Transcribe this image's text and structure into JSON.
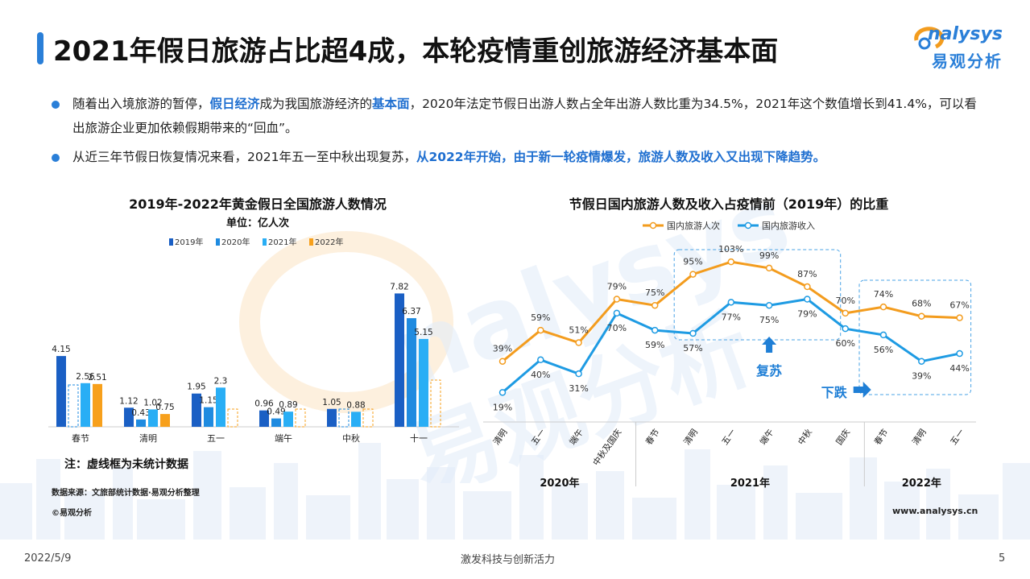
{
  "page": {
    "title": "2021年假日旅游占比超4成，本轮疫情重创旅游经济基本面",
    "logo_text": "nalysys",
    "logo_cn": "易观分析"
  },
  "bullets": [
    {
      "p1": "随着出入境旅游的暂停，",
      "h1": "假日经济",
      "p2": "成为我国旅游经济的",
      "h2": "基本面",
      "p3": "，2020年法定节假日出游人数占全年出游人数比重为34.5%，2021年这个数值增长到41.4%，可以看出旅游企业更加依赖假期带来的“回血”。"
    },
    {
      "p1": "从近三年节假日恢复情况来看，2021年五一至中秋出现复苏，",
      "h1": "从2022年开始，由于新一轮疫情爆发，旅游人数及收入又出现下降趋势。"
    }
  ],
  "chart_data": [
    {
      "type": "bar",
      "title": "2019年-2022年黄金假日全国旅游人数情况",
      "subtitle": "单位：亿人次",
      "categories": [
        "春节",
        "清明",
        "五一",
        "端午",
        "中秋",
        "十一"
      ],
      "series": [
        {
          "name": "2019年",
          "color": "#1a5fc4",
          "values": [
            4.15,
            1.12,
            1.95,
            0.96,
            1.05,
            7.82
          ]
        },
        {
          "name": "2020年",
          "color": "#1f8be0",
          "values": [
            null,
            0.43,
            1.15,
            0.49,
            null,
            6.37
          ],
          "dashed": [
            true,
            false,
            false,
            false,
            true,
            false
          ]
        },
        {
          "name": "2021年",
          "color": "#29aef5",
          "values": [
            2.56,
            1.02,
            2.3,
            0.89,
            0.88,
            5.15
          ]
        },
        {
          "name": "2022年",
          "color": "#f7a01c",
          "values": [
            2.51,
            0.75,
            null,
            null,
            null,
            null
          ],
          "dashed": [
            false,
            false,
            true,
            true,
            true,
            true
          ]
        }
      ],
      "ylim": [
        0,
        8.5
      ],
      "note": "注：虚线框为未统计数据",
      "source": "数据来源：文旅部统计数据·易观分析整理"
    },
    {
      "type": "line",
      "title": "节假日国内旅游人数及收入占疫情前（2019年）的比重",
      "categories": [
        "清明",
        "五一",
        "端午",
        "中秋及国庆",
        "春节",
        "清明",
        "五一",
        "端午",
        "中秋",
        "国庆",
        "春节",
        "清明",
        "五一"
      ],
      "groups": [
        {
          "label": "2020年",
          "from": 0,
          "to": 3
        },
        {
          "label": "2021年",
          "from": 4,
          "to": 9
        },
        {
          "label": "2022年",
          "from": 10,
          "to": 12
        }
      ],
      "series": [
        {
          "name": "国内旅游人次",
          "color": "#f39c1e",
          "values": [
            39,
            59,
            51,
            79,
            75,
            95,
            103,
            99,
            87,
            70,
            74,
            68,
            67
          ]
        },
        {
          "name": "国内旅游收入",
          "color": "#1e9be3",
          "values": [
            19,
            40,
            31,
            70,
            59,
            57,
            77,
            75,
            79,
            60,
            56,
            39,
            44
          ]
        }
      ],
      "ylim": [
        0,
        115
      ],
      "annotations": [
        {
          "text": "复苏"
        },
        {
          "text": "下跌"
        }
      ]
    }
  ],
  "footer": {
    "copyright": "©易观分析",
    "website": "www.analysys.cn",
    "date": "2022/5/9",
    "slogan": "激发科技与创新活力",
    "page_number": "5"
  },
  "watermark": {
    "text": "analysys 易观分析"
  }
}
